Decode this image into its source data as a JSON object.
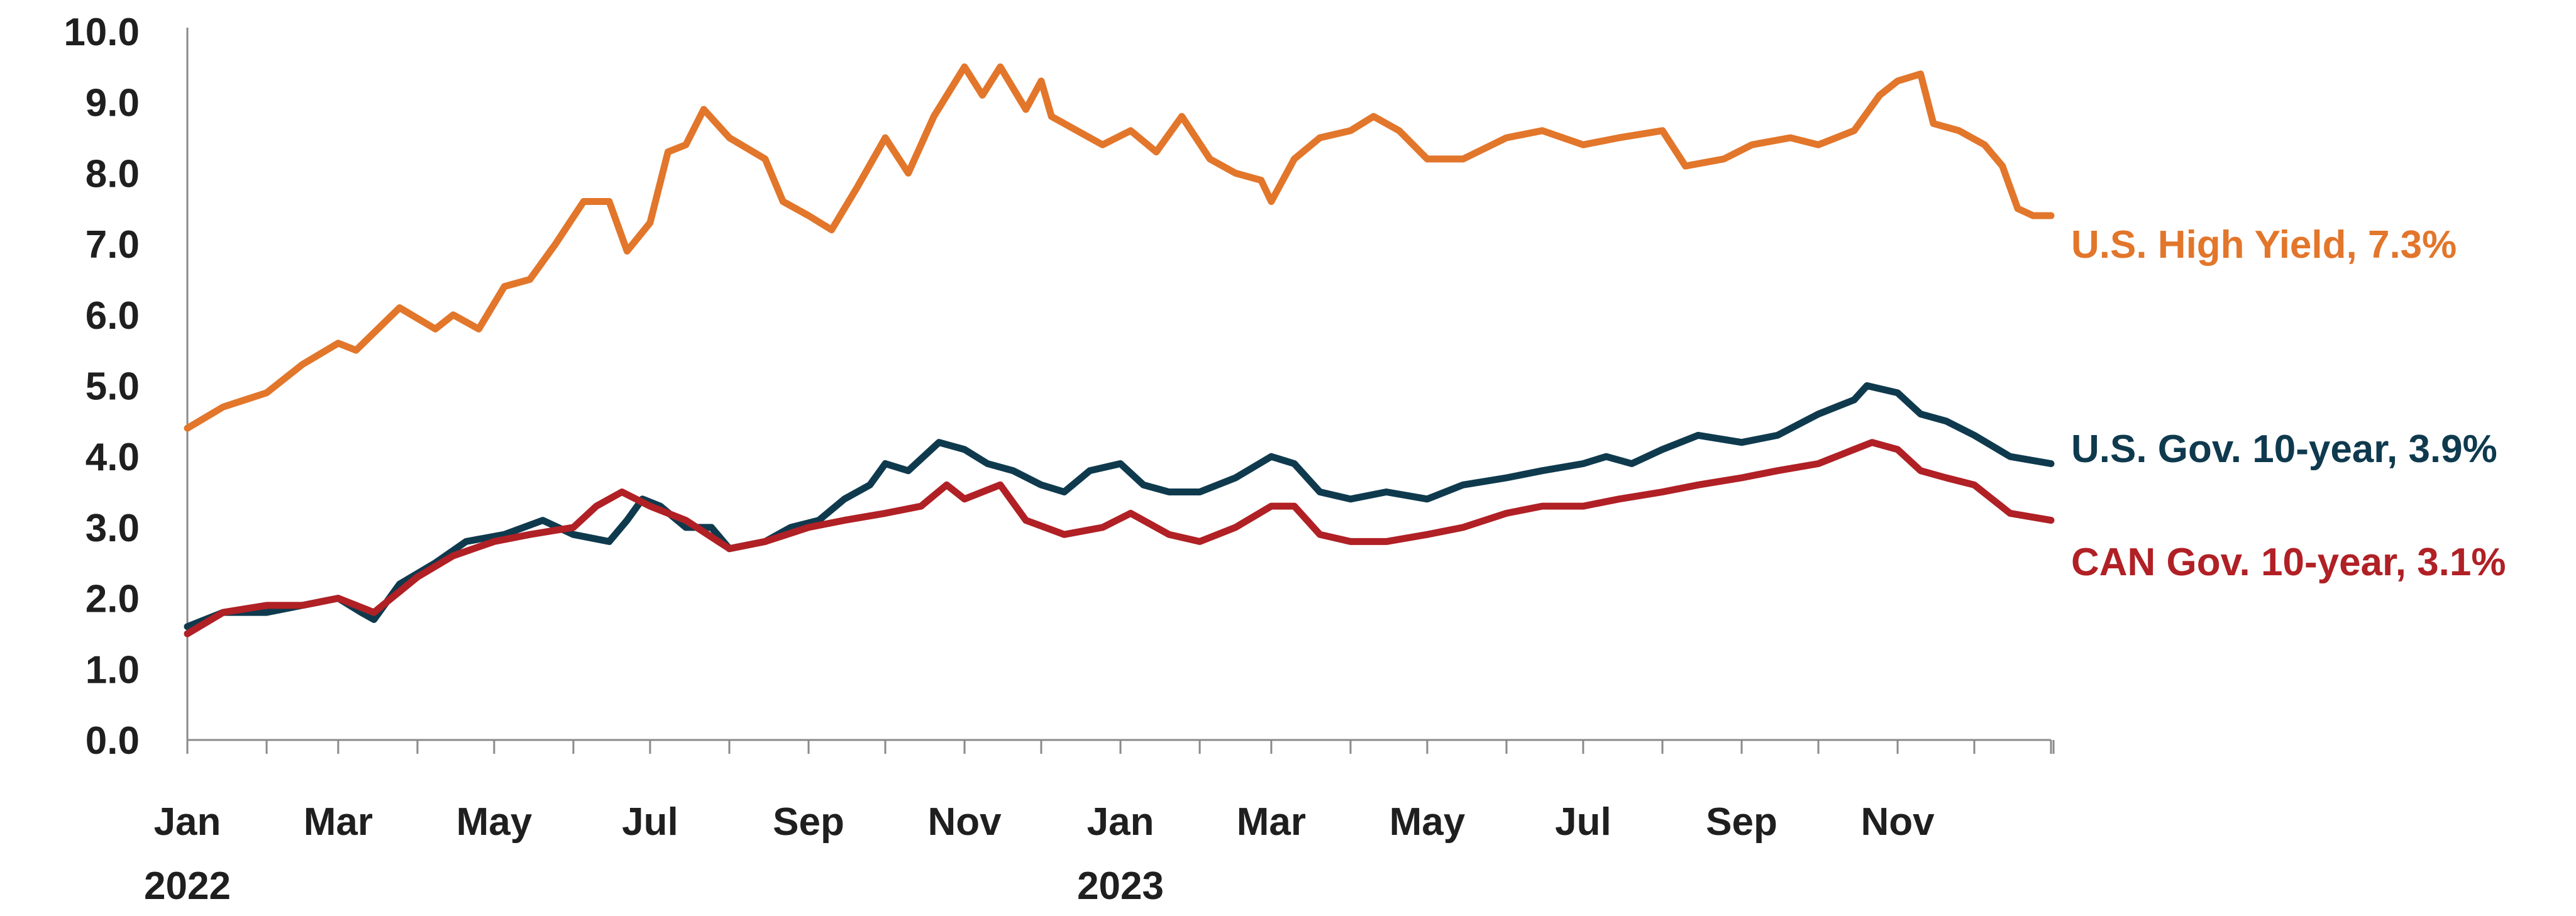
{
  "chart_data": {
    "type": "line",
    "title": "",
    "xlabel": "",
    "ylabel": "",
    "ylim": [
      0,
      10
    ],
    "y_ticks": [
      "0.0",
      "1.0",
      "2.0",
      "3.0",
      "4.0",
      "5.0",
      "6.0",
      "7.0",
      "8.0",
      "9.0",
      "10.0"
    ],
    "x_ticks": [
      {
        "label": "Jan",
        "year": "2022",
        "date": "2022-01-01"
      },
      {
        "label": "Mar",
        "year": "",
        "date": "2022-03-01"
      },
      {
        "label": "May",
        "year": "",
        "date": "2022-05-01"
      },
      {
        "label": "Jul",
        "year": "",
        "date": "2022-07-01"
      },
      {
        "label": "Sep",
        "year": "",
        "date": "2022-09-01"
      },
      {
        "label": "Nov",
        "year": "",
        "date": "2022-11-01"
      },
      {
        "label": "Jan",
        "year": "2023",
        "date": "2023-01-01"
      },
      {
        "label": "Mar",
        "year": "",
        "date": "2023-03-01"
      },
      {
        "label": "May",
        "year": "",
        "date": "2023-05-01"
      },
      {
        "label": "Jul",
        "year": "",
        "date": "2023-07-01"
      },
      {
        "label": "Sep",
        "year": "",
        "date": "2023-09-01"
      },
      {
        "label": "Nov",
        "year": "",
        "date": "2023-11-01"
      }
    ],
    "x_range": [
      "2022-01-01",
      "2023-12-31"
    ],
    "grid": false,
    "legend": "end-of-line labels (right)",
    "series": [
      {
        "label": "U.S. High Yield, 7.3%",
        "color": "#E2762B",
        "points": [
          [
            "2022-01-01",
            4.4
          ],
          [
            "2022-01-15",
            4.7
          ],
          [
            "2022-02-01",
            4.9
          ],
          [
            "2022-02-15",
            5.3
          ],
          [
            "2022-03-01",
            5.6
          ],
          [
            "2022-03-08",
            5.5
          ],
          [
            "2022-03-25",
            6.1
          ],
          [
            "2022-04-08",
            5.8
          ],
          [
            "2022-04-15",
            6.0
          ],
          [
            "2022-04-25",
            5.8
          ],
          [
            "2022-05-05",
            6.4
          ],
          [
            "2022-05-15",
            6.5
          ],
          [
            "2022-05-25",
            7.0
          ],
          [
            "2022-06-05",
            7.6
          ],
          [
            "2022-06-15",
            7.6
          ],
          [
            "2022-06-22",
            6.9
          ],
          [
            "2022-07-01",
            7.3
          ],
          [
            "2022-07-08",
            8.3
          ],
          [
            "2022-07-15",
            8.4
          ],
          [
            "2022-07-22",
            8.9
          ],
          [
            "2022-08-01",
            8.5
          ],
          [
            "2022-08-15",
            8.2
          ],
          [
            "2022-08-22",
            7.6
          ],
          [
            "2022-09-01",
            7.4
          ],
          [
            "2022-09-10",
            7.2
          ],
          [
            "2022-09-20",
            7.8
          ],
          [
            "2022-10-01",
            8.5
          ],
          [
            "2022-10-10",
            8.0
          ],
          [
            "2022-10-20",
            8.8
          ],
          [
            "2022-11-01",
            9.5
          ],
          [
            "2022-11-08",
            9.1
          ],
          [
            "2022-11-15",
            9.5
          ],
          [
            "2022-11-25",
            8.9
          ],
          [
            "2022-12-01",
            9.3
          ],
          [
            "2022-12-05",
            8.8
          ],
          [
            "2022-12-15",
            8.6
          ],
          [
            "2022-12-25",
            8.4
          ],
          [
            "2023-01-05",
            8.6
          ],
          [
            "2023-01-15",
            8.3
          ],
          [
            "2023-01-25",
            8.8
          ],
          [
            "2023-02-05",
            8.2
          ],
          [
            "2023-02-15",
            8.0
          ],
          [
            "2023-02-25",
            7.9
          ],
          [
            "2023-03-01",
            7.6
          ],
          [
            "2023-03-10",
            8.2
          ],
          [
            "2023-03-20",
            8.5
          ],
          [
            "2023-04-01",
            8.6
          ],
          [
            "2023-04-10",
            8.8
          ],
          [
            "2023-04-20",
            8.6
          ],
          [
            "2023-05-01",
            8.2
          ],
          [
            "2023-05-15",
            8.2
          ],
          [
            "2023-06-01",
            8.5
          ],
          [
            "2023-06-15",
            8.6
          ],
          [
            "2023-07-01",
            8.4
          ],
          [
            "2023-07-15",
            8.5
          ],
          [
            "2023-08-01",
            8.6
          ],
          [
            "2023-08-10",
            8.1
          ],
          [
            "2023-08-25",
            8.2
          ],
          [
            "2023-09-05",
            8.4
          ],
          [
            "2023-09-20",
            8.5
          ],
          [
            "2023-10-01",
            8.4
          ],
          [
            "2023-10-15",
            8.6
          ],
          [
            "2023-10-25",
            9.1
          ],
          [
            "2023-11-01",
            9.3
          ],
          [
            "2023-11-10",
            9.4
          ],
          [
            "2023-11-15",
            8.7
          ],
          [
            "2023-11-25",
            8.6
          ],
          [
            "2023-12-05",
            8.4
          ],
          [
            "2023-12-12",
            8.1
          ],
          [
            "2023-12-18",
            7.5
          ],
          [
            "2023-12-24",
            7.4
          ],
          [
            "2023-12-31",
            7.4
          ]
        ]
      },
      {
        "label": "U.S. Gov. 10-year, 3.9%",
        "color": "#0F3A4E",
        "points": [
          [
            "2022-01-01",
            1.6
          ],
          [
            "2022-01-15",
            1.8
          ],
          [
            "2022-02-01",
            1.8
          ],
          [
            "2022-02-15",
            1.9
          ],
          [
            "2022-03-01",
            2.0
          ],
          [
            "2022-03-10",
            1.8
          ],
          [
            "2022-03-15",
            1.7
          ],
          [
            "2022-03-25",
            2.2
          ],
          [
            "2022-04-08",
            2.5
          ],
          [
            "2022-04-20",
            2.8
          ],
          [
            "2022-05-05",
            2.9
          ],
          [
            "2022-05-20",
            3.1
          ],
          [
            "2022-06-01",
            2.9
          ],
          [
            "2022-06-15",
            2.8
          ],
          [
            "2022-06-22",
            3.1
          ],
          [
            "2022-06-28",
            3.4
          ],
          [
            "2022-07-05",
            3.3
          ],
          [
            "2022-07-15",
            3.0
          ],
          [
            "2022-07-25",
            3.0
          ],
          [
            "2022-08-01",
            2.7
          ],
          [
            "2022-08-15",
            2.8
          ],
          [
            "2022-08-25",
            3.0
          ],
          [
            "2022-09-05",
            3.1
          ],
          [
            "2022-09-15",
            3.4
          ],
          [
            "2022-09-25",
            3.6
          ],
          [
            "2022-10-01",
            3.9
          ],
          [
            "2022-10-10",
            3.8
          ],
          [
            "2022-10-22",
            4.2
          ],
          [
            "2022-11-01",
            4.1
          ],
          [
            "2022-11-10",
            3.9
          ],
          [
            "2022-11-20",
            3.8
          ],
          [
            "2022-12-01",
            3.6
          ],
          [
            "2022-12-10",
            3.5
          ],
          [
            "2022-12-20",
            3.8
          ],
          [
            "2023-01-01",
            3.9
          ],
          [
            "2023-01-10",
            3.6
          ],
          [
            "2023-01-20",
            3.5
          ],
          [
            "2023-02-01",
            3.5
          ],
          [
            "2023-02-15",
            3.7
          ],
          [
            "2023-03-01",
            4.0
          ],
          [
            "2023-03-10",
            3.9
          ],
          [
            "2023-03-20",
            3.5
          ],
          [
            "2023-04-01",
            3.4
          ],
          [
            "2023-04-15",
            3.5
          ],
          [
            "2023-05-01",
            3.4
          ],
          [
            "2023-05-15",
            3.6
          ],
          [
            "2023-06-01",
            3.7
          ],
          [
            "2023-06-15",
            3.8
          ],
          [
            "2023-07-01",
            3.9
          ],
          [
            "2023-07-10",
            4.0
          ],
          [
            "2023-07-20",
            3.9
          ],
          [
            "2023-08-01",
            4.1
          ],
          [
            "2023-08-15",
            4.3
          ],
          [
            "2023-09-01",
            4.2
          ],
          [
            "2023-09-15",
            4.3
          ],
          [
            "2023-10-01",
            4.6
          ],
          [
            "2023-10-15",
            4.8
          ],
          [
            "2023-10-20",
            5.0
          ],
          [
            "2023-11-01",
            4.9
          ],
          [
            "2023-11-10",
            4.6
          ],
          [
            "2023-11-20",
            4.5
          ],
          [
            "2023-12-01",
            4.3
          ],
          [
            "2023-12-15",
            4.0
          ],
          [
            "2023-12-31",
            3.9
          ]
        ]
      },
      {
        "label": "CAN Gov. 10-year, 3.1%",
        "color": "#B02025",
        "points": [
          [
            "2022-01-01",
            1.5
          ],
          [
            "2022-01-15",
            1.8
          ],
          [
            "2022-02-01",
            1.9
          ],
          [
            "2022-02-15",
            1.9
          ],
          [
            "2022-03-01",
            2.0
          ],
          [
            "2022-03-15",
            1.8
          ],
          [
            "2022-04-01",
            2.3
          ],
          [
            "2022-04-15",
            2.6
          ],
          [
            "2022-05-01",
            2.8
          ],
          [
            "2022-05-15",
            2.9
          ],
          [
            "2022-06-01",
            3.0
          ],
          [
            "2022-06-10",
            3.3
          ],
          [
            "2022-06-20",
            3.5
          ],
          [
            "2022-07-01",
            3.3
          ],
          [
            "2022-07-15",
            3.1
          ],
          [
            "2022-08-01",
            2.7
          ],
          [
            "2022-08-15",
            2.8
          ],
          [
            "2022-09-01",
            3.0
          ],
          [
            "2022-09-15",
            3.1
          ],
          [
            "2022-10-01",
            3.2
          ],
          [
            "2022-10-15",
            3.3
          ],
          [
            "2022-10-25",
            3.6
          ],
          [
            "2022-11-01",
            3.4
          ],
          [
            "2022-11-15",
            3.6
          ],
          [
            "2022-11-25",
            3.1
          ],
          [
            "2022-12-10",
            2.9
          ],
          [
            "2022-12-25",
            3.0
          ],
          [
            "2023-01-05",
            3.2
          ],
          [
            "2023-01-20",
            2.9
          ],
          [
            "2023-02-01",
            2.8
          ],
          [
            "2023-02-15",
            3.0
          ],
          [
            "2023-03-01",
            3.3
          ],
          [
            "2023-03-10",
            3.3
          ],
          [
            "2023-03-20",
            2.9
          ],
          [
            "2023-04-01",
            2.8
          ],
          [
            "2023-04-15",
            2.8
          ],
          [
            "2023-05-01",
            2.9
          ],
          [
            "2023-05-15",
            3.0
          ],
          [
            "2023-06-01",
            3.2
          ],
          [
            "2023-06-15",
            3.3
          ],
          [
            "2023-07-01",
            3.3
          ],
          [
            "2023-07-15",
            3.4
          ],
          [
            "2023-08-01",
            3.5
          ],
          [
            "2023-08-15",
            3.6
          ],
          [
            "2023-09-01",
            3.7
          ],
          [
            "2023-09-15",
            3.8
          ],
          [
            "2023-10-01",
            3.9
          ],
          [
            "2023-10-15",
            4.1
          ],
          [
            "2023-10-22",
            4.2
          ],
          [
            "2023-11-01",
            4.1
          ],
          [
            "2023-11-10",
            3.8
          ],
          [
            "2023-11-20",
            3.7
          ],
          [
            "2023-12-01",
            3.6
          ],
          [
            "2023-12-15",
            3.2
          ],
          [
            "2023-12-31",
            3.1
          ]
        ]
      }
    ]
  }
}
